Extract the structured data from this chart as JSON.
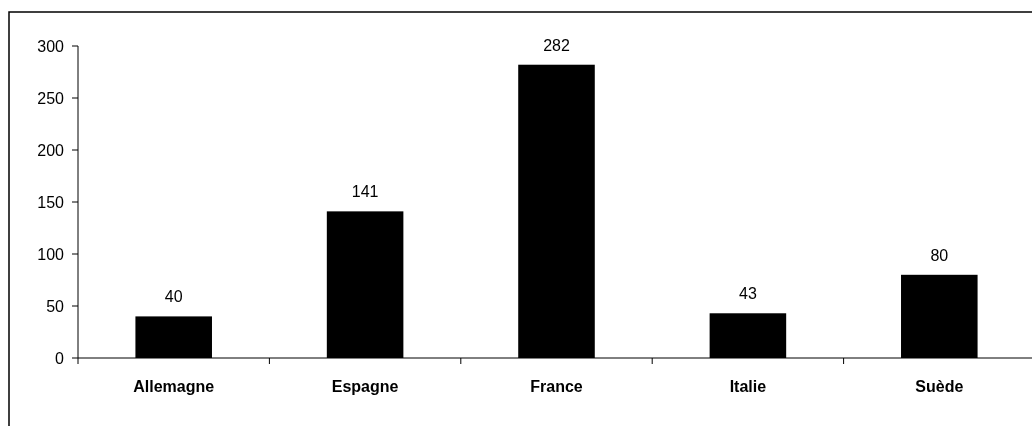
{
  "chart_data": {
    "type": "bar",
    "categories": [
      "Allemagne",
      "Espagne",
      "France",
      "Italie",
      "Suède"
    ],
    "values": [
      40,
      141,
      282,
      43,
      80
    ],
    "color": "#000000",
    "ylim": [
      0,
      300
    ],
    "yticks": [
      0,
      50,
      100,
      150,
      200,
      250,
      300
    ],
    "data_labels": true
  }
}
